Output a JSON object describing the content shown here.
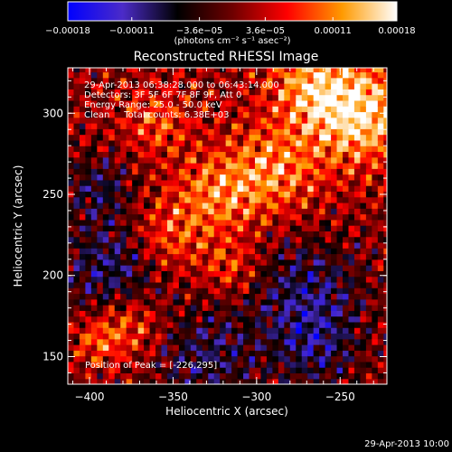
{
  "chart_data": {
    "type": "heatmap",
    "title": "Reconstructed RHESSI Image",
    "xlabel": "Heliocentric X (arcsec)",
    "ylabel": "Heliocentric Y (arcsec)",
    "xlim": [
      -413,
      -222
    ],
    "ylim": [
      133,
      328
    ],
    "x_ticks": [
      -400,
      -350,
      -300,
      -250
    ],
    "y_ticks": [
      150,
      200,
      250,
      300
    ],
    "x_tick_labels": [
      "-400",
      "-350",
      "-300",
      "-250"
    ],
    "y_tick_labels": [
      "150",
      "200",
      "250",
      "300"
    ],
    "colorbar": {
      "min": -0.00018,
      "max": 0.00018,
      "ticks": [
        -0.00018,
        -0.00011,
        -3.6e-05,
        3.6e-05,
        0.00011,
        0.00018
      ],
      "tick_labels": [
        "-0.00018",
        "-0.00011",
        "-3.6e-05",
        "3.6e-05",
        "0.00011",
        "0.00018"
      ],
      "unit_label": "(photons cm⁻² s⁻¹ asec⁻²)",
      "colors": [
        "#0000ff",
        "#4b2bc8",
        "#000000",
        "#6e0000",
        "#ff0000",
        "#ff9a00",
        "#ffffff"
      ]
    },
    "info_lines": [
      "29-Apr-2013 06:38:28.000 to 06:43:14.000",
      "Detectors: 3F 5F 6F 7F 8F 9F, Att 0",
      "Energy Range: 25.0 - 50.0 keV",
      "Clean     Total counts: 6.38E+03"
    ],
    "peak_label": "Position of Peak = [-226,295]",
    "peak": {
      "x": -226,
      "y": 295
    },
    "timestamp": "29-Apr-2013 10:00"
  }
}
